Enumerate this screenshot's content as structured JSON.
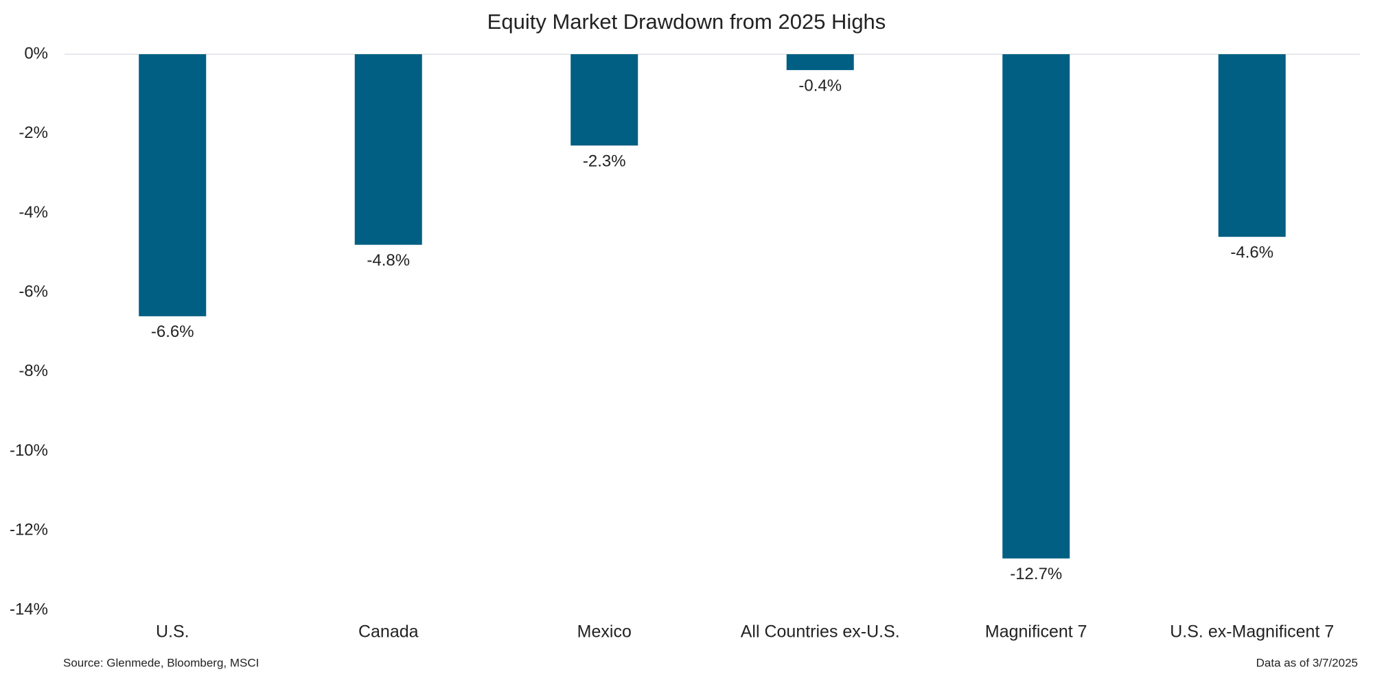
{
  "chart_data": {
    "type": "bar",
    "title": "Equity Market Drawdown from 2025 Highs",
    "categories": [
      "U.S.",
      "Canada",
      "Mexico",
      "All Countries ex-U.S.",
      "Magnificent 7",
      "U.S. ex-Magnificent 7"
    ],
    "values": [
      -6.6,
      -4.8,
      -2.3,
      -0.4,
      -12.7,
      -4.6
    ],
    "value_labels": [
      "-6.6%",
      "-4.8%",
      "-2.3%",
      "-0.4%",
      "-12.7%",
      "-4.6%"
    ],
    "color": "#005f83",
    "ylim": [
      -14,
      0
    ],
    "yticks": [
      {
        "value": 0,
        "label": "0%"
      },
      {
        "value": -2,
        "label": "-2%"
      },
      {
        "value": -4,
        "label": "-4%"
      },
      {
        "value": -6,
        "label": "-6%"
      },
      {
        "value": -8,
        "label": "-8%"
      },
      {
        "value": -10,
        "label": "-10%"
      },
      {
        "value": -12,
        "label": "-12%"
      },
      {
        "value": -14,
        "label": "-14%"
      }
    ],
    "grid": false,
    "source": "Source: Glenmede, Bloomberg, MSCI",
    "note": "Data as of 3/7/2025"
  }
}
